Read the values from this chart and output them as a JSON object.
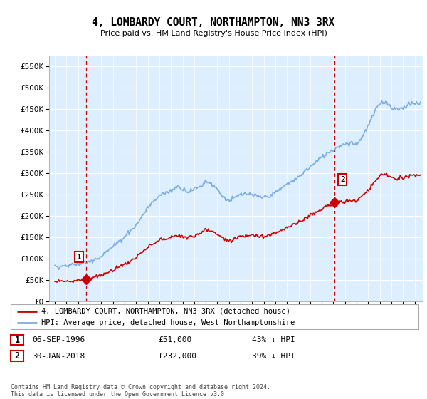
{
  "title": "4, LOMBARDY COURT, NORTHAMPTON, NN3 3RX",
  "subtitle": "Price paid vs. HM Land Registry's House Price Index (HPI)",
  "legend_line1": "4, LOMBARDY COURT, NORTHAMPTON, NN3 3RX (detached house)",
  "legend_line2": "HPI: Average price, detached house, West Northamptonshire",
  "footer": "Contains HM Land Registry data © Crown copyright and database right 2024.\nThis data is licensed under the Open Government Licence v3.0.",
  "sale1_date": "06-SEP-1996",
  "sale1_price": "£51,000",
  "sale1_hpi": "43% ↓ HPI",
  "sale2_date": "30-JAN-2018",
  "sale2_price": "£232,000",
  "sale2_hpi": "39% ↓ HPI",
  "ylim": [
    0,
    575000
  ],
  "xlim_start": 1993.5,
  "xlim_end": 2025.7,
  "sale1_x": 1996.68,
  "sale1_y": 51000,
  "sale2_x": 2018.08,
  "sale2_y": 232000,
  "red_line_color": "#cc0000",
  "blue_line_color": "#7aade0",
  "marker_color": "#cc0000",
  "vline_color": "#cc0000",
  "bg_color": "#ddeeff",
  "grid_color": "#ffffff",
  "label_box_edge": "#cc0000"
}
